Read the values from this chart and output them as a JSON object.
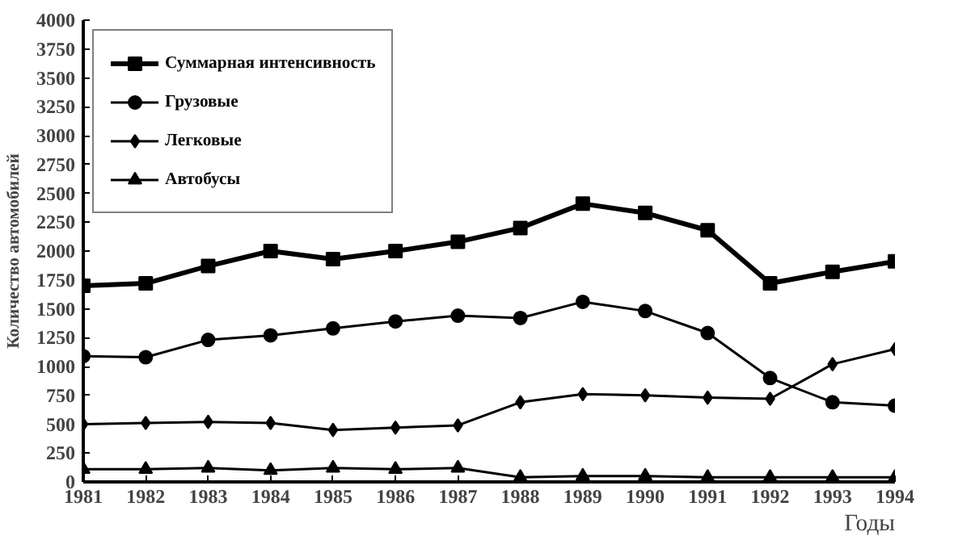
{
  "chart_data": {
    "type": "line",
    "ylabel": "Количество автомобилей",
    "xlabel": "Годы",
    "x": [
      1981,
      1982,
      1983,
      1984,
      1985,
      1986,
      1987,
      1988,
      1989,
      1990,
      1991,
      1992,
      1993,
      1994
    ],
    "xlim": [
      1981,
      1994
    ],
    "xticks": [
      1981,
      1982,
      1983,
      1984,
      1985,
      1986,
      1987,
      1988,
      1989,
      1990,
      1991,
      1992,
      1993,
      1994
    ],
    "ylim": [
      0,
      4000
    ],
    "yticks": [
      0,
      250,
      500,
      750,
      1000,
      1250,
      1500,
      1750,
      2000,
      2250,
      2500,
      2750,
      3000,
      3250,
      3500,
      3750,
      4000
    ],
    "grid": false,
    "legend": "top left",
    "line_style": "solid",
    "series": [
      {
        "name": "Суммарная интенсивность",
        "color": "#000000",
        "marker": "square",
        "values": [
          1700,
          1720,
          1870,
          2000,
          1930,
          2000,
          2080,
          2200,
          2410,
          2330,
          2180,
          1720,
          1820,
          1910
        ]
      },
      {
        "name": "Грузовые",
        "color": "#000000",
        "marker": "circle",
        "values": [
          1090,
          1080,
          1230,
          1270,
          1330,
          1390,
          1440,
          1420,
          1560,
          1480,
          1290,
          900,
          690,
          660
        ]
      },
      {
        "name": "Легковые",
        "color": "#000000",
        "marker": "diamond",
        "values": [
          500,
          510,
          520,
          510,
          450,
          470,
          490,
          690,
          760,
          750,
          730,
          720,
          1020,
          1150
        ]
      },
      {
        "name": "Автобусы",
        "color": "#000000",
        "marker": "triangle",
        "values": [
          110,
          110,
          120,
          100,
          120,
          110,
          120,
          40,
          50,
          50,
          40,
          40,
          40,
          40
        ]
      }
    ]
  }
}
